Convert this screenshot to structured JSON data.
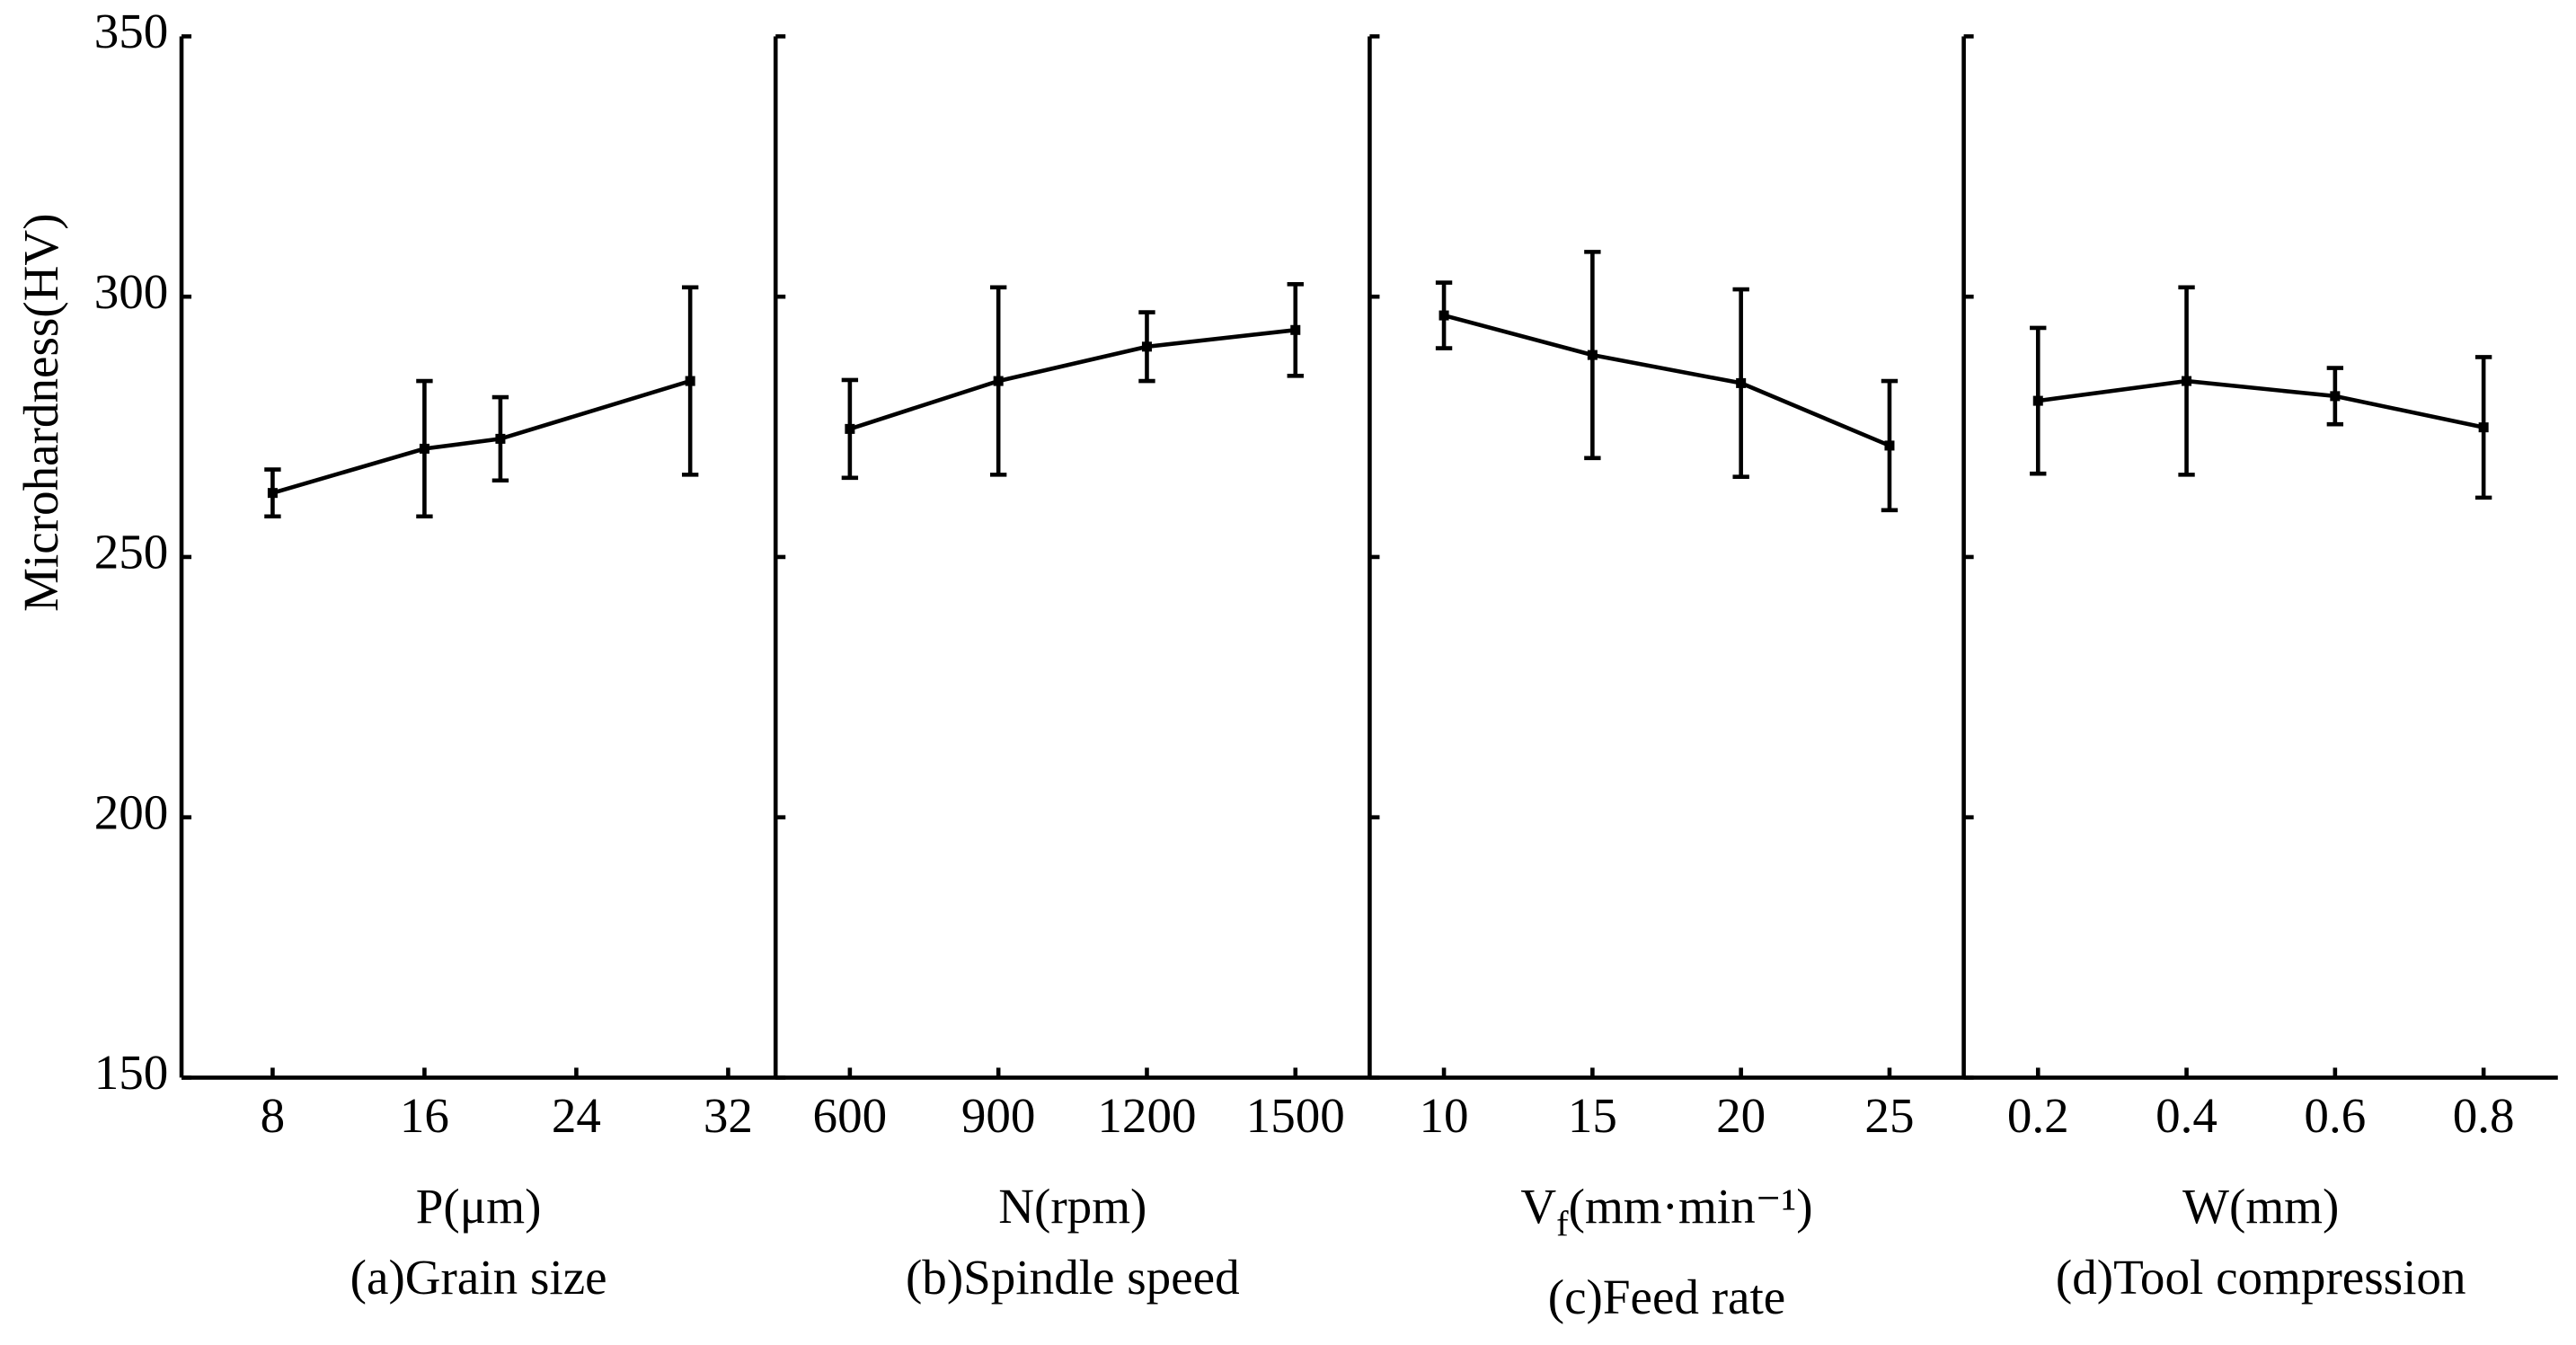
{
  "chart_data": [
    {
      "type": "line",
      "ylabel": "Microhardness(HV)",
      "xlabel": "P(μm)",
      "caption": "(a)Grain size",
      "color": "#000000",
      "x": [
        8,
        16,
        20,
        30
      ],
      "values": [
        262.3,
        270.8,
        272.7,
        283.8
      ],
      "errors": [
        4.5,
        13,
        8,
        18
      ],
      "xlim": [
        3.2,
        34.5
      ],
      "xticks": [
        8,
        16,
        24,
        32
      ],
      "ylim": [
        150,
        350
      ],
      "yticks": [
        150,
        200,
        250,
        300,
        350
      ]
    },
    {
      "type": "line",
      "xlabel": "N(rpm)",
      "caption": "(b)Spindle speed",
      "color": "#000000",
      "x": [
        600,
        900,
        1200,
        1500
      ],
      "values": [
        274.6,
        283.8,
        290.4,
        293.6
      ],
      "errors": [
        9.4,
        18,
        6.6,
        8.8
      ],
      "xlim": [
        450,
        1650
      ],
      "xticks": [
        600,
        900,
        1200,
        1500
      ],
      "ylim": [
        150,
        350
      ]
    },
    {
      "type": "line",
      "xlabel": {
        "main": "V",
        "sub": "f",
        "rest": "(mm·min⁻¹)"
      },
      "caption": "(c)Feed rate",
      "color": "#000000",
      "x": [
        10,
        15,
        20,
        25
      ],
      "values": [
        296.4,
        288.8,
        283.4,
        271.4
      ],
      "errors": [
        6.3,
        19.8,
        18,
        12.4
      ],
      "xlim": [
        7.5,
        27.5
      ],
      "xticks": [
        10,
        15,
        20,
        25
      ],
      "ylim": [
        150,
        350
      ]
    },
    {
      "type": "line",
      "xlabel": "W(mm)",
      "caption": "(d)Tool compression",
      "color": "#000000",
      "x": [
        0.2,
        0.4,
        0.6,
        0.8
      ],
      "values": [
        280,
        283.8,
        280.9,
        274.9
      ],
      "errors": [
        14,
        18,
        5.4,
        13.5
      ],
      "xlim": [
        0.1,
        0.9
      ],
      "xticks": [
        0.2,
        0.4,
        0.6,
        0.8
      ],
      "ylim": [
        150,
        350
      ]
    }
  ]
}
